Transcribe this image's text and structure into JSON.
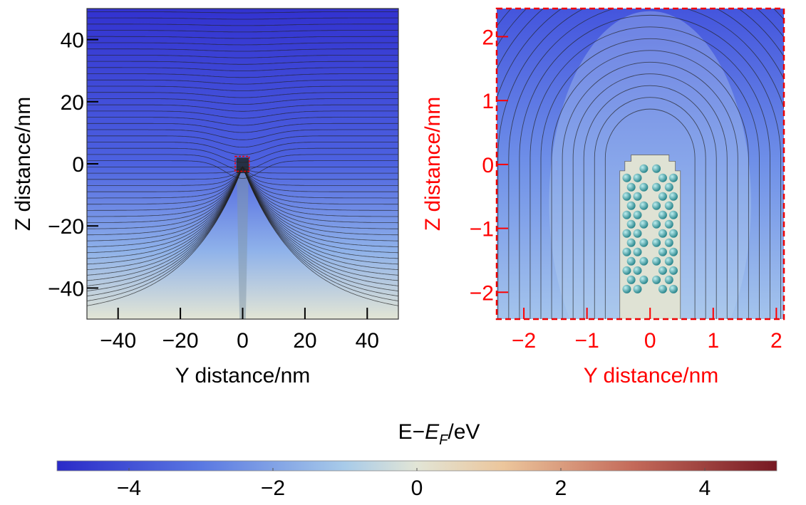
{
  "chart_data": [
    {
      "type": "contour",
      "xlabel": "Y distance/nm",
      "ylabel": "Z distance/nm",
      "color": "#000000",
      "xlim": [
        -50,
        50
      ],
      "ylim": [
        -50,
        50
      ],
      "xticks": [
        {
          "value": -40,
          "label": "−40"
        },
        {
          "value": -20,
          "label": "−20"
        },
        0,
        20,
        40
      ],
      "yticks": [
        {
          "value": -40,
          "label": "−40"
        },
        {
          "value": -20,
          "label": "−20"
        },
        0,
        20,
        40
      ]
    },
    {
      "type": "contour",
      "xlabel": "Y distance/nm",
      "ylabel": "Z distance/nm",
      "color": "#ff0000",
      "xlim": [
        -2.43,
        2.12
      ],
      "ylim": [
        -2.42,
        2.44
      ],
      "xticks": [
        {
          "value": -2,
          "label": "−2"
        },
        {
          "value": -1,
          "label": "−1"
        },
        0,
        1,
        2
      ],
      "yticks": [
        {
          "value": -2,
          "label": "−2"
        },
        {
          "value": -1,
          "label": "−1"
        },
        0,
        1,
        2
      ]
    },
    {
      "type": "colorbar",
      "title_parts": [
        "E−",
        "E",
        "F",
        "/eV"
      ],
      "xlim": [
        -5,
        5
      ],
      "xticks": [
        {
          "value": -4,
          "label": "−4"
        },
        {
          "value": -2,
          "label": "−2"
        },
        0,
        2,
        4
      ]
    }
  ]
}
